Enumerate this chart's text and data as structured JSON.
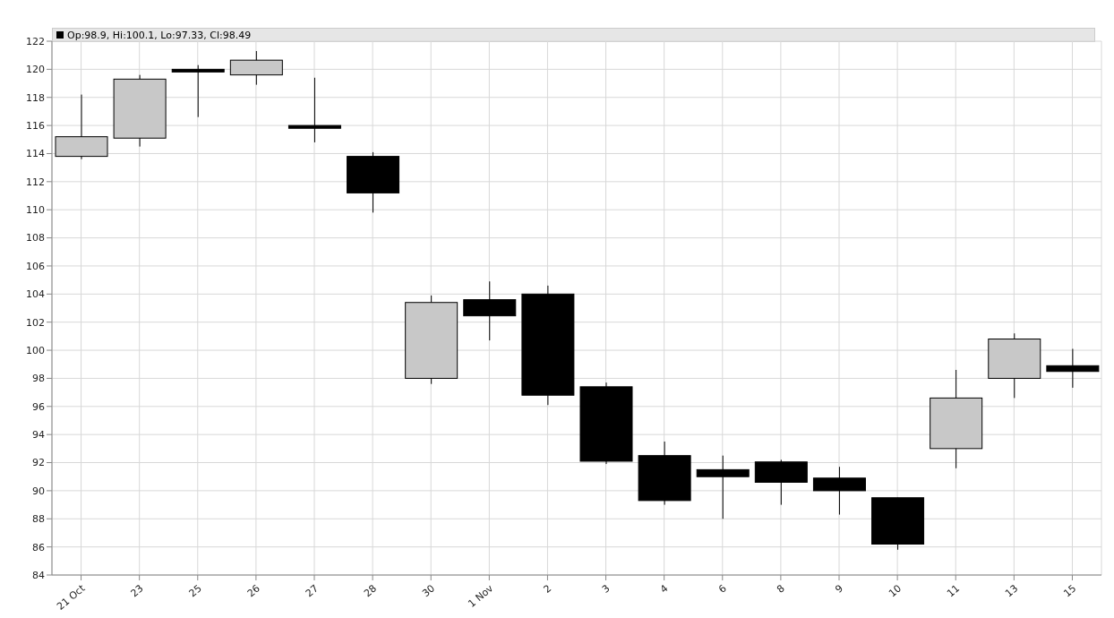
{
  "chart_data": {
    "type": "candlestick",
    "annotations": [
      "Op:98.9, Hi:100.1, Lo:97.33, Cl:98.49"
    ],
    "categories": [
      "21 Oct",
      "23",
      "25",
      "26",
      "27",
      "28",
      "30",
      "1 Nov",
      "2",
      "3",
      "4",
      "6",
      "8",
      "9",
      "10",
      "11",
      "13",
      "15"
    ],
    "ohlc": [
      [
        113.8,
        118.2,
        113.6,
        115.2
      ],
      [
        115.1,
        119.6,
        114.5,
        119.3
      ],
      [
        120.0,
        120.3,
        116.6,
        119.9
      ],
      [
        119.6,
        121.3,
        118.9,
        120.65
      ],
      [
        116.0,
        119.4,
        114.8,
        115.8
      ],
      [
        113.8,
        114.1,
        109.8,
        111.2
      ],
      [
        98.0,
        103.9,
        97.6,
        103.4
      ],
      [
        103.6,
        104.9,
        100.7,
        102.45
      ],
      [
        104.0,
        104.6,
        96.1,
        96.8
      ],
      [
        97.4,
        97.7,
        91.9,
        92.1
      ],
      [
        92.5,
        93.5,
        89.0,
        89.3
      ],
      [
        91.5,
        92.5,
        88.0,
        91.0
      ],
      [
        92.05,
        92.2,
        89.0,
        90.6
      ],
      [
        90.9,
        91.7,
        88.3,
        90.0
      ],
      [
        89.5,
        89.5,
        85.8,
        86.2
      ],
      [
        93.0,
        98.6,
        91.6,
        96.6
      ],
      [
        98.0,
        101.2,
        96.6,
        100.8
      ],
      [
        98.9,
        100.1,
        97.33,
        98.49
      ]
    ],
    "colors": [
      "#c8c8c8",
      "#c8c8c8",
      "#000000",
      "#c8c8c8",
      "#000000",
      "#000000",
      "#c8c8c8",
      "#000000",
      "#000000",
      "#000000",
      "#000000",
      "#000000",
      "#000000",
      "#000000",
      "#000000",
      "#c8c8c8",
      "#c8c8c8",
      "#000000"
    ],
    "ylim": [
      84,
      122
    ],
    "yticks": [
      84,
      86,
      88,
      90,
      92,
      94,
      96,
      98,
      100,
      102,
      104,
      106,
      108,
      110,
      112,
      114,
      116,
      118,
      120,
      122
    ],
    "grid": true
  }
}
